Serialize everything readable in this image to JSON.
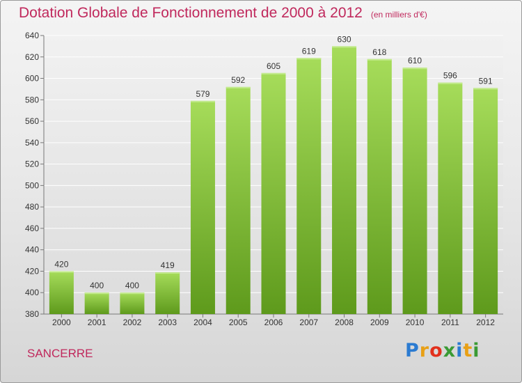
{
  "title": "Dotation Globale de Fonctionnement de 2000 à 2012",
  "subtitle": "(en milliers d'€)",
  "location": "SANCERRE",
  "logo": {
    "letters": [
      "P",
      "r",
      "o",
      "x",
      "i",
      "t",
      "i"
    ],
    "colors": [
      "#2b7bd1",
      "#e8a016",
      "#e2301c",
      "#3a9a34",
      "#2b7bd1",
      "#e8a016",
      "#3a9a34"
    ]
  },
  "colors": {
    "bar": "#7ec032",
    "bar_light": "#a6dc5a",
    "bar_dark": "#5e9a1c",
    "title": "#c0285c"
  },
  "chart_data": {
    "type": "bar",
    "categories": [
      "2000",
      "2001",
      "2002",
      "2003",
      "2004",
      "2005",
      "2006",
      "2007",
      "2008",
      "2009",
      "2010",
      "2011",
      "2012"
    ],
    "values": [
      420,
      400,
      400,
      419,
      579,
      592,
      605,
      619,
      630,
      618,
      610,
      596,
      591
    ],
    "ylim": [
      380,
      640
    ],
    "yticks": [
      380,
      400,
      420,
      440,
      460,
      480,
      500,
      520,
      540,
      560,
      580,
      600,
      620,
      640
    ],
    "grid": true,
    "legend": "none"
  }
}
